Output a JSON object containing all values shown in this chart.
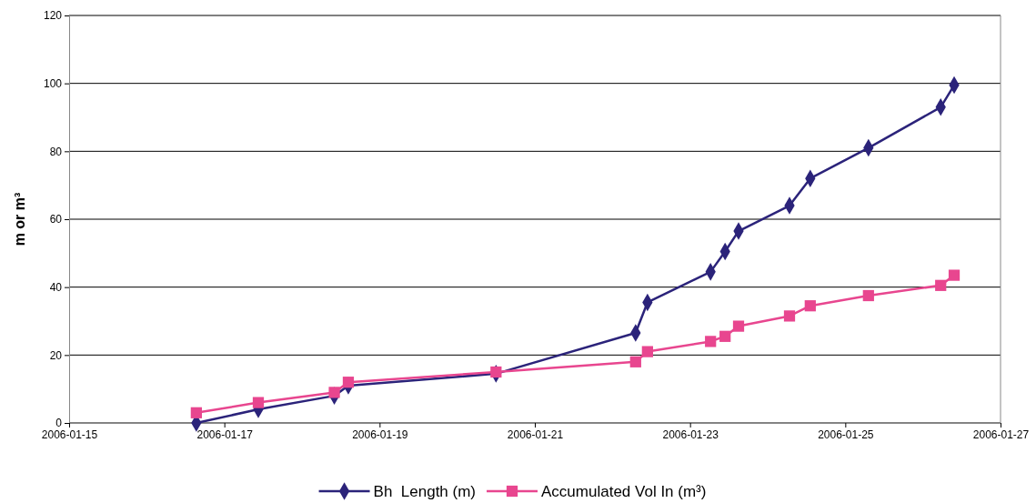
{
  "chart_data": {
    "type": "line",
    "ylabel": "m  or m³",
    "xlim": [
      "2006-01-15",
      "2006-01-27"
    ],
    "xticks": [
      "2006-01-15",
      "2006-01-17",
      "2006-01-19",
      "2006-01-21",
      "2006-01-23",
      "2006-01-25",
      "2006-01-27"
    ],
    "ylim": [
      0,
      120
    ],
    "yticks": [
      0,
      20,
      40,
      60,
      80,
      100,
      120
    ],
    "grid": "y",
    "legend": "bottom",
    "x": [
      "2006-01-16T15:20",
      "2006-01-17T10:30",
      "2006-01-18T10:00",
      "2006-01-18T14:20",
      "2006-01-20T12:00",
      "2006-01-22T07:10",
      "2006-01-22T10:50",
      "2006-01-23T06:20",
      "2006-01-23T10:50",
      "2006-01-23T15:00",
      "2006-01-24T06:45",
      "2006-01-24T13:10",
      "2006-01-25T07:10",
      "2006-01-26T05:30",
      "2006-01-26T09:40"
    ],
    "series": [
      {
        "name": "Bh  Length (m)",
        "color": "#2b237a",
        "marker": "diamond",
        "values": [
          0,
          4,
          8,
          11,
          14.5,
          26.5,
          35.5,
          44.5,
          50.5,
          56.5,
          64,
          72,
          81,
          93,
          99.5
        ]
      },
      {
        "name": "Accumulated Vol In (m³)",
        "color": "#e8468f",
        "marker": "square",
        "values": [
          3,
          6,
          9,
          12,
          15,
          18,
          21,
          24,
          25.5,
          28.5,
          31.5,
          34.5,
          37.5,
          40.5,
          43.5
        ]
      }
    ]
  }
}
